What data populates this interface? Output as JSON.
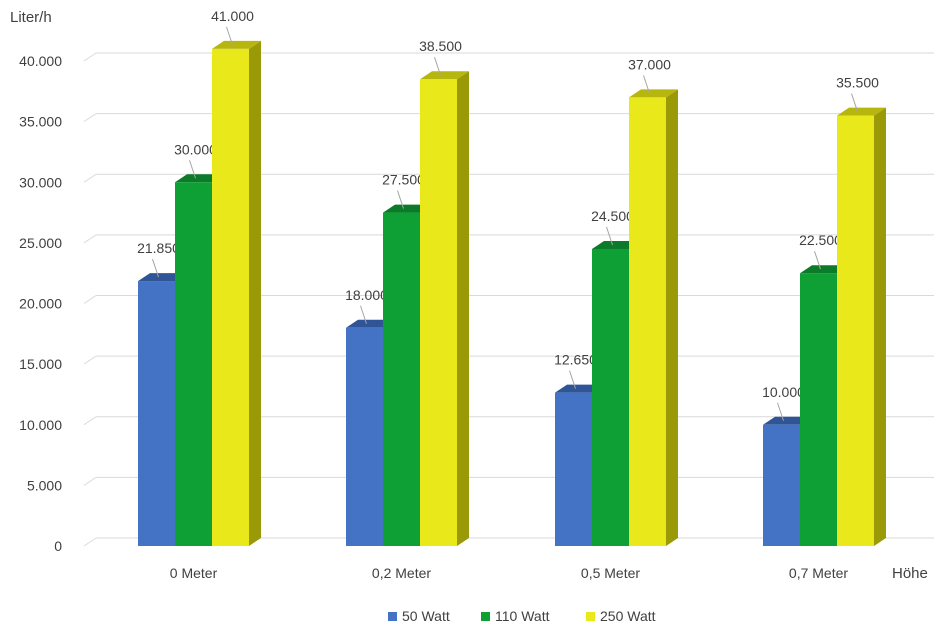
{
  "chart_data": {
    "type": "bar",
    "ylabel": "Liter/h",
    "xlabel": "Höhe",
    "ylim": [
      0,
      40000
    ],
    "yticks": [
      "0",
      "5.000",
      "10.000",
      "15.000",
      "20.000",
      "25.000",
      "30.000",
      "35.000",
      "40.000"
    ],
    "categories": [
      "0 Meter",
      "0,2 Meter",
      "0,5 Meter",
      "0,7 Meter"
    ],
    "series": [
      {
        "name": "50 Watt",
        "values": [
          21850,
          18000,
          12650,
          10000
        ],
        "labels": [
          "21.850",
          "18.000",
          "12.650",
          "10.000"
        ]
      },
      {
        "name": "110 Watt",
        "values": [
          30000,
          27500,
          24500,
          22500
        ],
        "labels": [
          "30.000",
          "27.500",
          "24.500",
          "22.500"
        ]
      },
      {
        "name": "250 Watt",
        "values": [
          41000,
          38500,
          37000,
          35500
        ],
        "labels": [
          "41.000",
          "38.500",
          "37.000",
          "35.500"
        ]
      }
    ],
    "grid": true,
    "legend": "bottom",
    "colors": {
      "50 Watt": {
        "front": "#4472C4",
        "top": "#2F5597",
        "side": "#203864"
      },
      "110 Watt": {
        "front": "#0E9F35",
        "top": "#0B7A29",
        "side": "#075A1D"
      },
      "250 Watt": {
        "front": "#E9E81A",
        "top": "#B6B60E",
        "side": "#9A9A08"
      }
    }
  }
}
